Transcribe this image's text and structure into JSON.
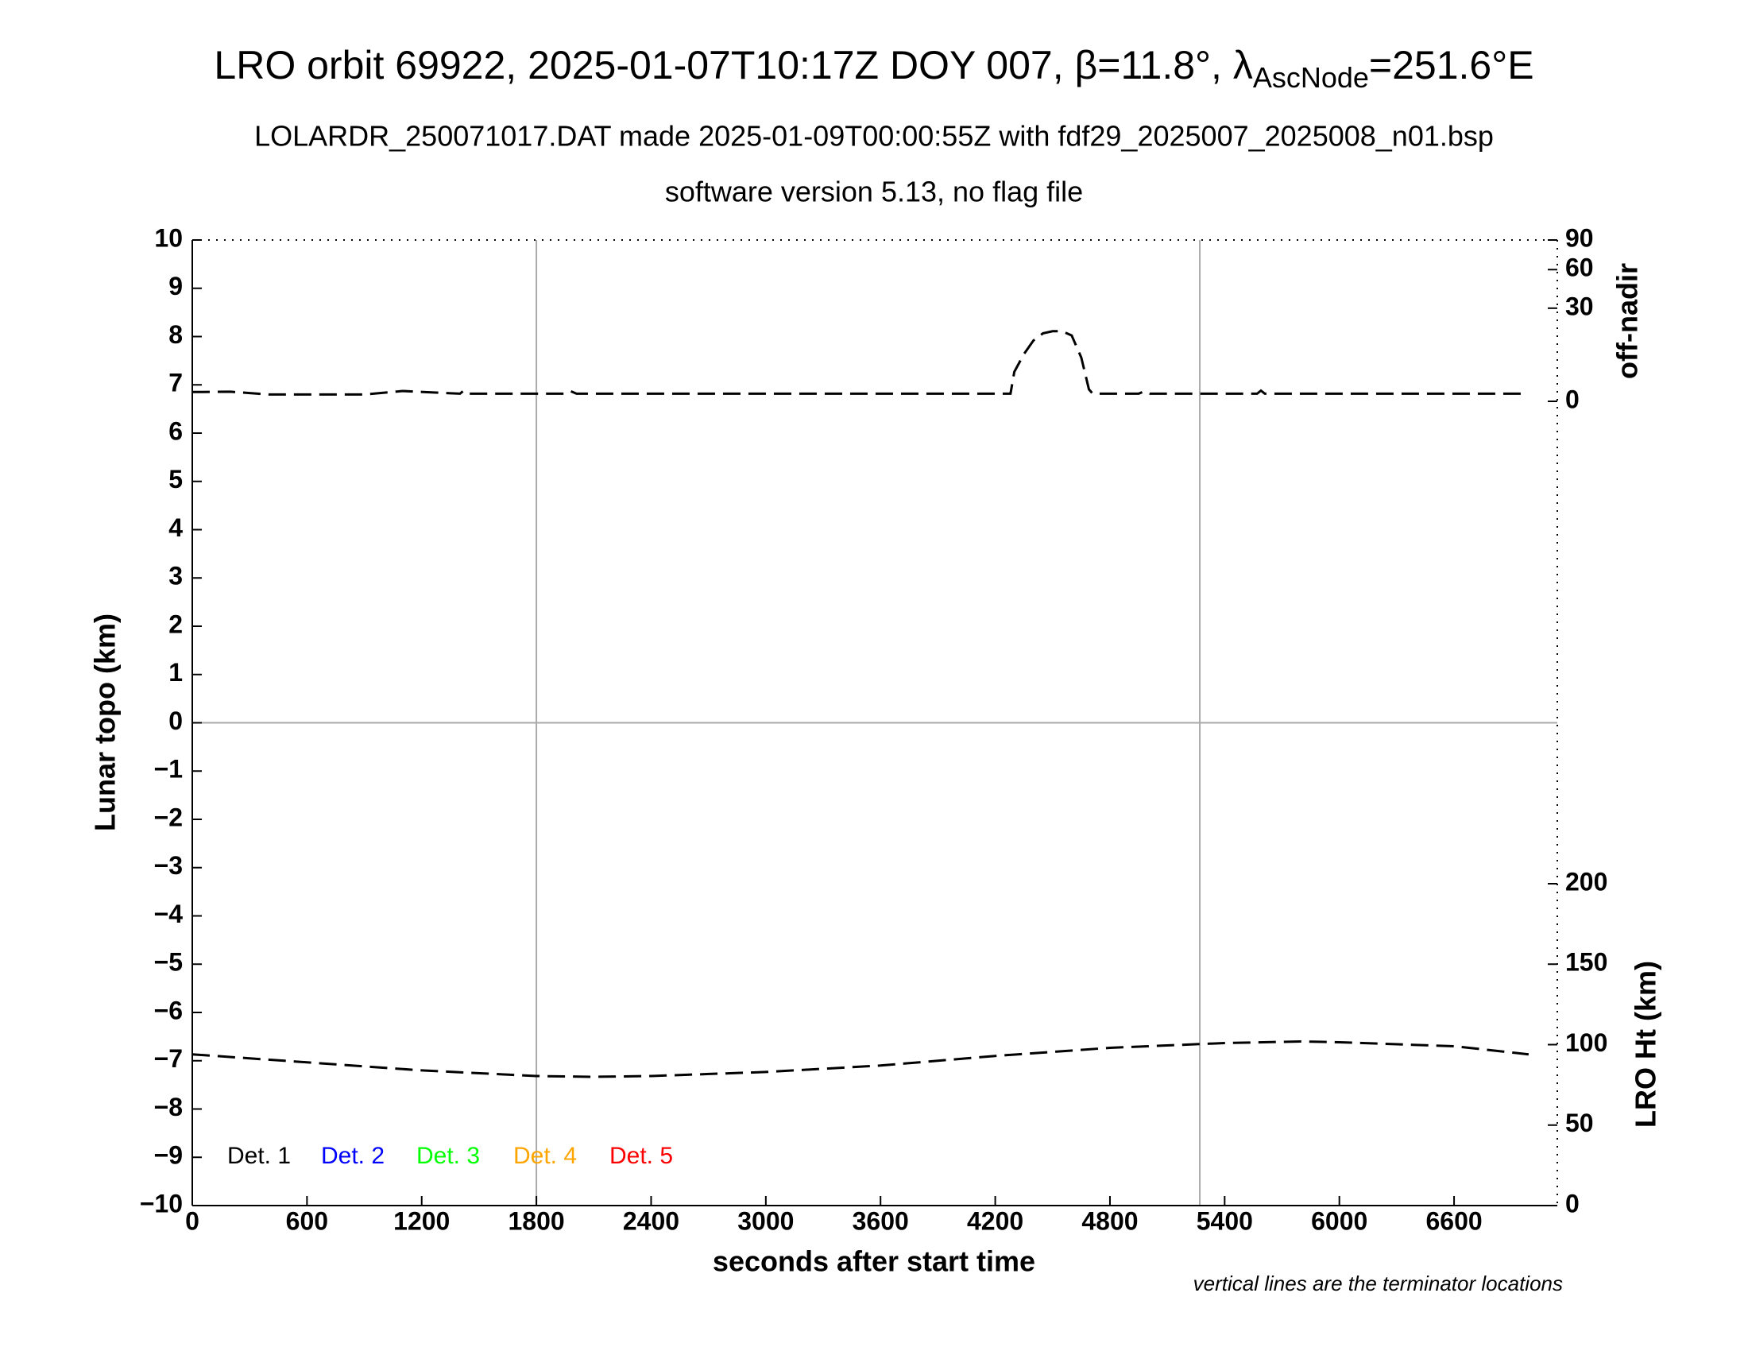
{
  "chart_data": {
    "type": "line",
    "title": [
      "LRO orbit 69922, 2025-01-07T10:17Z DOY 007, β=11.8°, λ",
      "AscNode",
      "=251.6°E"
    ],
    "subtitle": [
      "LOLARDR_250071017.DAT made 2025-01-09T00:00:55Z with fdf29_2025007_2025008_n01.bsp",
      "software version 5.13, no flag file"
    ],
    "xlabel": "seconds after start time",
    "ylabel": "Lunar topo (km)",
    "y2label": "off-nadir",
    "y3label": "LRO Ht (km)",
    "note": "vertical lines are the terminator locations",
    "xlim": [
      0,
      7140
    ],
    "xticks": [
      0,
      600,
      1200,
      1800,
      2400,
      3000,
      3600,
      4200,
      4800,
      5400,
      6000,
      6600
    ],
    "ylim": [
      -10,
      10
    ],
    "yticks": [
      10,
      9,
      8,
      7,
      6,
      5,
      4,
      3,
      2,
      1,
      0,
      {
        "value": -1,
        "label": "−1"
      },
      {
        "value": -2,
        "label": "−2"
      },
      {
        "value": -3,
        "label": "−3"
      },
      {
        "value": -4,
        "label": "−4"
      },
      {
        "value": -5,
        "label": "−5"
      },
      {
        "value": -6,
        "label": "−6"
      },
      {
        "value": -7,
        "label": "−7"
      },
      {
        "value": -8,
        "label": "−8"
      },
      {
        "value": -9,
        "label": "−9"
      },
      {
        "value": -10,
        "label": "−10"
      }
    ],
    "y2lim": [
      0,
      90
    ],
    "y2scale": "sqrt",
    "y2ticks": [
      90,
      60,
      30,
      0
    ],
    "y3lim": [
      0,
      600
    ],
    "y3ticks": [
      200,
      150,
      100,
      50,
      0
    ],
    "terminators": [
      1800,
      5270
    ],
    "zero_line": 0,
    "legend": [
      {
        "name": "Det. 1",
        "color": "#000000"
      },
      {
        "name": "Det. 2",
        "color": "#0000ff"
      },
      {
        "name": "Det. 3",
        "color": "#00ff00"
      },
      {
        "name": "Det. 4",
        "color": "#ffa500"
      },
      {
        "name": "Det. 5",
        "color": "#ff0000"
      }
    ],
    "series": [
      {
        "axis": "y2",
        "color": "#000000",
        "x": [
          0,
          200,
          400,
          600,
          900,
          1100,
          1300,
          1400,
          1420,
          1450,
          1600,
          1800,
          1950,
          1980,
          2010,
          2400,
          3000,
          3600,
          4200,
          4280,
          4300,
          4350,
          4400,
          4450,
          4500,
          4550,
          4600,
          4650,
          4690,
          4710,
          4800,
          4950,
          4980,
          5010,
          5400,
          5570,
          5590,
          5610,
          6000,
          6600,
          6990
        ],
        "values": [
          0.3,
          0.32,
          0.16,
          0.16,
          0.16,
          0.37,
          0.25,
          0.2,
          0.4,
          0.2,
          0.2,
          0.2,
          0.2,
          0.35,
          0.2,
          0.2,
          0.2,
          0.2,
          0.2,
          0.2,
          3,
          7.7,
          12.8,
          16,
          17,
          17,
          15,
          6.6,
          0.5,
          0.2,
          0.2,
          0.2,
          0.35,
          0.2,
          0.2,
          0.2,
          0.4,
          0.2,
          0.2,
          0.2,
          0.2
        ]
      },
      {
        "axis": "y3",
        "color": "#000000",
        "x": [
          0,
          600,
          1200,
          1800,
          2100,
          2400,
          3000,
          3600,
          4200,
          4800,
          5400,
          5800,
          6000,
          6600,
          6990
        ],
        "values": [
          94,
          89,
          84,
          80.5,
          80,
          80.5,
          83,
          87,
          93,
          98,
          101,
          102,
          101.5,
          99,
          94
        ]
      }
    ]
  }
}
